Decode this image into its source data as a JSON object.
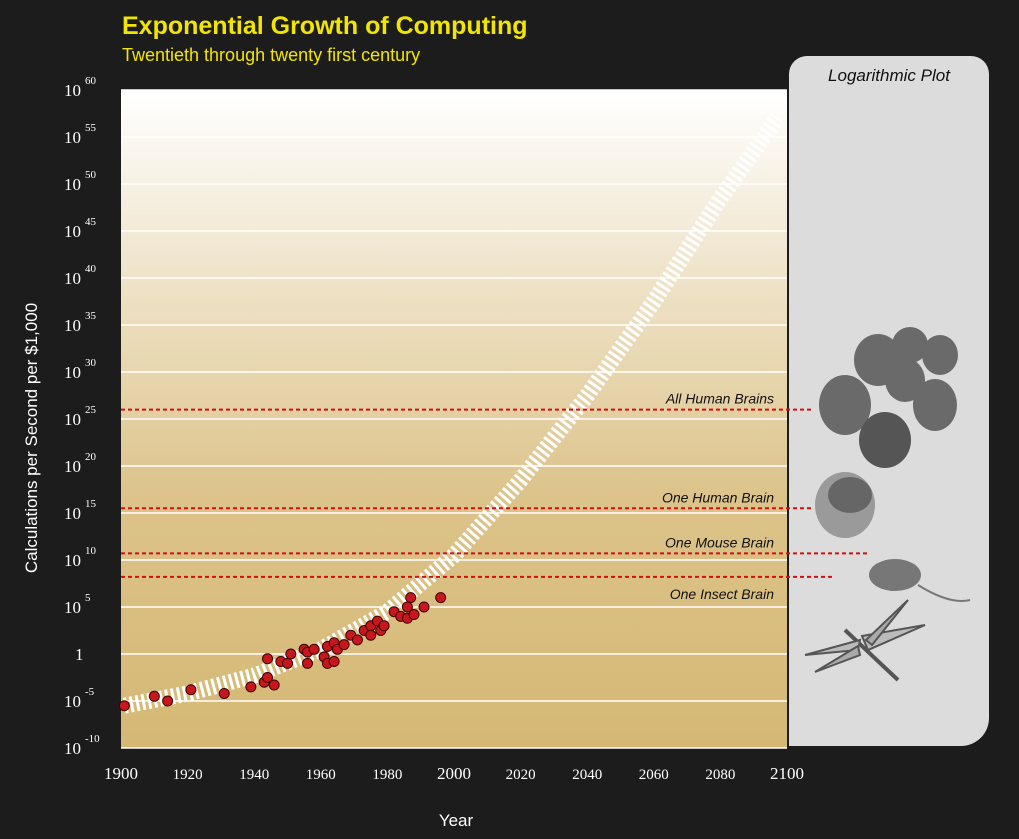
{
  "chart_data": {
    "type": "scatter",
    "title": "Exponential Growth of Computing",
    "subtitle": "Twentieth through twenty first century",
    "panel_title": "Logarithmic Plot",
    "xlabel": "Year",
    "ylabel": "Calculations per Second per $1,000",
    "xlim": [
      1900,
      2100
    ],
    "ylim_exponent": [
      -10,
      60
    ],
    "y_scale": "log10",
    "x_ticks": [
      "1900",
      "1920",
      "1940",
      "1960",
      "1980",
      "2000",
      "2020",
      "2040",
      "2060",
      "2080",
      "2100"
    ],
    "y_ticks": [
      {
        "base": "10",
        "exp": "60"
      },
      {
        "base": "10",
        "exp": "55"
      },
      {
        "base": "10",
        "exp": "50"
      },
      {
        "base": "10",
        "exp": "45"
      },
      {
        "base": "10",
        "exp": "40"
      },
      {
        "base": "10",
        "exp": "35"
      },
      {
        "base": "10",
        "exp": "30"
      },
      {
        "base": "10",
        "exp": "25"
      },
      {
        "base": "10",
        "exp": "20"
      },
      {
        "base": "10",
        "exp": "15"
      },
      {
        "base": "10",
        "exp": "10"
      },
      {
        "base": "10",
        "exp": "5"
      },
      {
        "base": "1",
        "exp": ""
      },
      {
        "base": "10",
        "exp": "-5"
      },
      {
        "base": "10",
        "exp": "-10"
      }
    ],
    "grid": true,
    "series": [
      {
        "points": [
          [
            1901,
            -5.5
          ],
          [
            1910,
            -4.5
          ],
          [
            1914,
            -5.0
          ],
          [
            1921,
            -3.8
          ],
          [
            1931,
            -4.2
          ],
          [
            1939,
            -3.5
          ],
          [
            1943,
            -3.0
          ],
          [
            1944,
            -0.5
          ],
          [
            1946,
            -3.3
          ],
          [
            1944,
            -2.5
          ],
          [
            1948,
            -0.8
          ],
          [
            1950,
            -1.0
          ],
          [
            1951,
            0.0
          ],
          [
            1955,
            0.5
          ],
          [
            1956,
            -1.0
          ],
          [
            1956,
            0.2
          ],
          [
            1958,
            0.5
          ],
          [
            1961,
            -0.3
          ],
          [
            1962,
            0.8
          ],
          [
            1962,
            -1.0
          ],
          [
            1964,
            1.2
          ],
          [
            1964,
            -0.8
          ],
          [
            1965,
            0.5
          ],
          [
            1967,
            1.0
          ],
          [
            1969,
            2.0
          ],
          [
            1971,
            1.5
          ],
          [
            1973,
            2.5
          ],
          [
            1975,
            3.0
          ],
          [
            1975,
            2.0
          ],
          [
            1977,
            3.5
          ],
          [
            1978,
            2.5
          ],
          [
            1979,
            3.0
          ],
          [
            1982,
            4.5
          ],
          [
            1984,
            4.0
          ],
          [
            1986,
            3.8
          ],
          [
            1986,
            5.0
          ],
          [
            1987,
            6.0
          ],
          [
            1988,
            4.2
          ],
          [
            1991,
            5.0
          ],
          [
            1996,
            6.0
          ]
        ]
      }
    ],
    "trend": {
      "style": "dashed-white-band",
      "description_points": [
        [
          1901,
          -5.5
        ],
        [
          1920,
          -4.2
        ],
        [
          1940,
          -2.3
        ],
        [
          1960,
          0.5
        ],
        [
          1980,
          4.5
        ],
        [
          2000,
          10.5
        ],
        [
          2020,
          18.5
        ],
        [
          2040,
          27.5
        ],
        [
          2060,
          37.5
        ],
        [
          2080,
          48.5
        ],
        [
          2097,
          57.0
        ]
      ]
    },
    "annotations": [
      {
        "label": "All Human Brains",
        "y_exp": 26
      },
      {
        "label": "One Human Brain",
        "y_exp": 15.5
      },
      {
        "label": "One Mouse Brain",
        "y_exp": 10.7
      },
      {
        "label": "One Insect Brain",
        "y_exp": 8.2
      }
    ],
    "colors": {
      "point": "#c8161d",
      "annotation_line": "#d01010",
      "title": "#f2e500",
      "band_top": "#ffffff",
      "band_bottom": "#d7bb78"
    }
  }
}
